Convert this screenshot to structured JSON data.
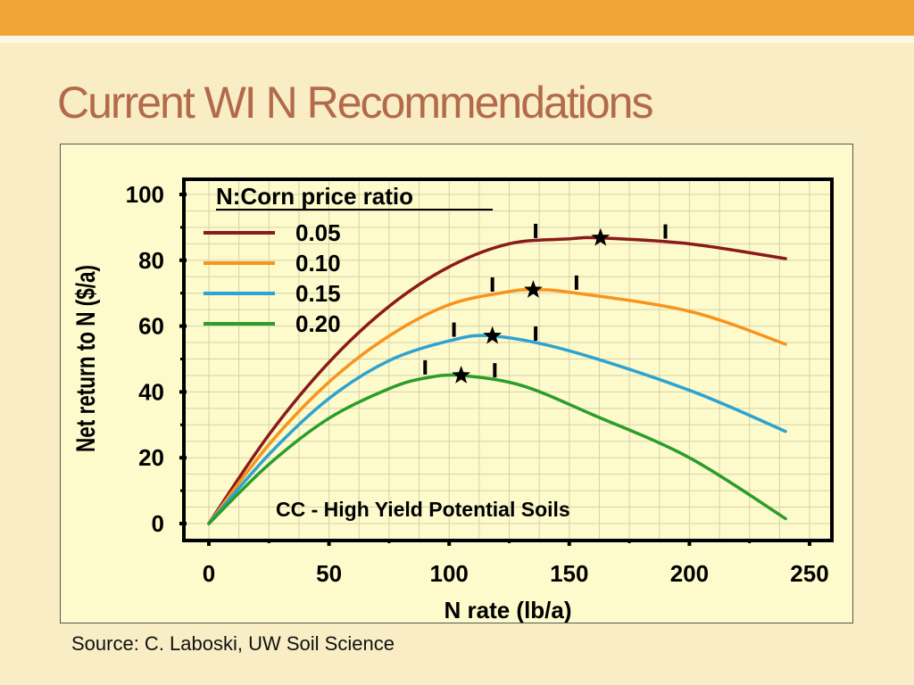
{
  "slide": {
    "title": "Current WI N Recommendations",
    "source": "Source: C. Laboski, UW Soil Science",
    "accent_color": "#f0a535",
    "title_color": "#b36a4a"
  },
  "chart_data": {
    "type": "line",
    "title": "",
    "xlabel": "N rate (lb/a)",
    "ylabel": "Net return to N ($/a)",
    "xlim": [
      0,
      250
    ],
    "ylim": [
      0,
      100
    ],
    "x_ticks": [
      "0",
      "50",
      "100",
      "150",
      "200",
      "250"
    ],
    "y_ticks": [
      "0",
      "20",
      "40",
      "60",
      "80",
      "100"
    ],
    "grid": true,
    "legend_title": "N:Corn price ratio",
    "legend_position": "top-left",
    "annotation": "CC - High Yield Potential Soils",
    "series": [
      {
        "name": "0.05",
        "color": "#8b1a1a",
        "x": [
          0,
          25,
          50,
          75,
          100,
          125,
          150,
          163,
          200,
          240
        ],
        "y": [
          0,
          27,
          49,
          66,
          78,
          85,
          86.5,
          86.8,
          85,
          80.5
        ],
        "optimum": {
          "x": 163,
          "y": 86.8
        },
        "range": [
          136,
          190
        ]
      },
      {
        "name": "0.10",
        "color": "#f7941d",
        "x": [
          0,
          25,
          50,
          75,
          100,
          125,
          135,
          150,
          200,
          240
        ],
        "y": [
          0,
          24,
          43,
          57,
          66.5,
          70.5,
          71,
          70.3,
          64.5,
          54.5
        ],
        "optimum": {
          "x": 135,
          "y": 71
        },
        "range": [
          118,
          153
        ]
      },
      {
        "name": "0.15",
        "color": "#2ea3d1",
        "x": [
          0,
          25,
          50,
          75,
          100,
          118,
          150,
          200,
          240
        ],
        "y": [
          0,
          21,
          38,
          49.5,
          55.5,
          57,
          52.5,
          40.5,
          28
        ],
        "optimum": {
          "x": 118,
          "y": 57
        },
        "range": [
          102,
          136
        ]
      },
      {
        "name": "0.20",
        "color": "#2a9d2a",
        "x": [
          0,
          25,
          50,
          75,
          90,
          105,
          130,
          160,
          200,
          240
        ],
        "y": [
          0,
          18,
          32,
          41,
          44.2,
          45,
          42,
          33,
          20,
          1.5
        ],
        "optimum": {
          "x": 105,
          "y": 45
        },
        "range": [
          90,
          119
        ]
      }
    ]
  }
}
